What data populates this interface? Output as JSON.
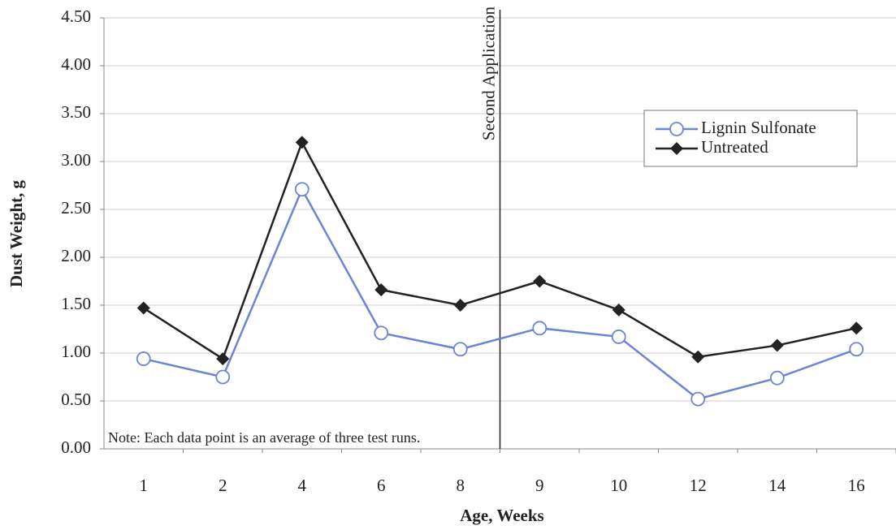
{
  "chart_data": {
    "type": "line",
    "y_label": "Dust Weight, g",
    "x_label": "Age, Weeks",
    "annotations": [
      "Second Application",
      "Note: Each data point is an average of three test runs."
    ],
    "categories": [
      "1",
      "2",
      "4",
      "6",
      "8",
      "9",
      "10",
      "12",
      "14",
      "16"
    ],
    "series": [
      {
        "name": "Lignin Sulfonate",
        "color": "#6d83d6",
        "marker": "circle",
        "values": [
          0.94,
          0.75,
          2.71,
          1.21,
          1.04,
          1.26,
          1.17,
          0.52,
          0.74,
          1.04
        ]
      },
      {
        "name": "Untreated",
        "color": "#222222",
        "marker": "diamond",
        "values": [
          1.47,
          0.94,
          3.2,
          1.66,
          1.5,
          1.75,
          1.45,
          0.96,
          1.08,
          1.26
        ]
      }
    ],
    "ylim": [
      0,
      4.5
    ],
    "yticks": [
      {
        "value": 0,
        "label": "0.00"
      },
      {
        "value": 0.5,
        "label": "0.50"
      },
      {
        "value": 1,
        "label": "1.00"
      },
      {
        "value": 1.5,
        "label": "1.50"
      },
      {
        "value": 2,
        "label": "2.00"
      },
      {
        "value": 2.5,
        "label": "2.50"
      },
      {
        "value": 3,
        "label": "3.00"
      },
      {
        "value": 3.5,
        "label": "3.50"
      },
      {
        "value": 4,
        "label": "4.00"
      },
      {
        "value": 4.5,
        "label": "4.50"
      }
    ],
    "grid": true,
    "legend": "upper right"
  }
}
